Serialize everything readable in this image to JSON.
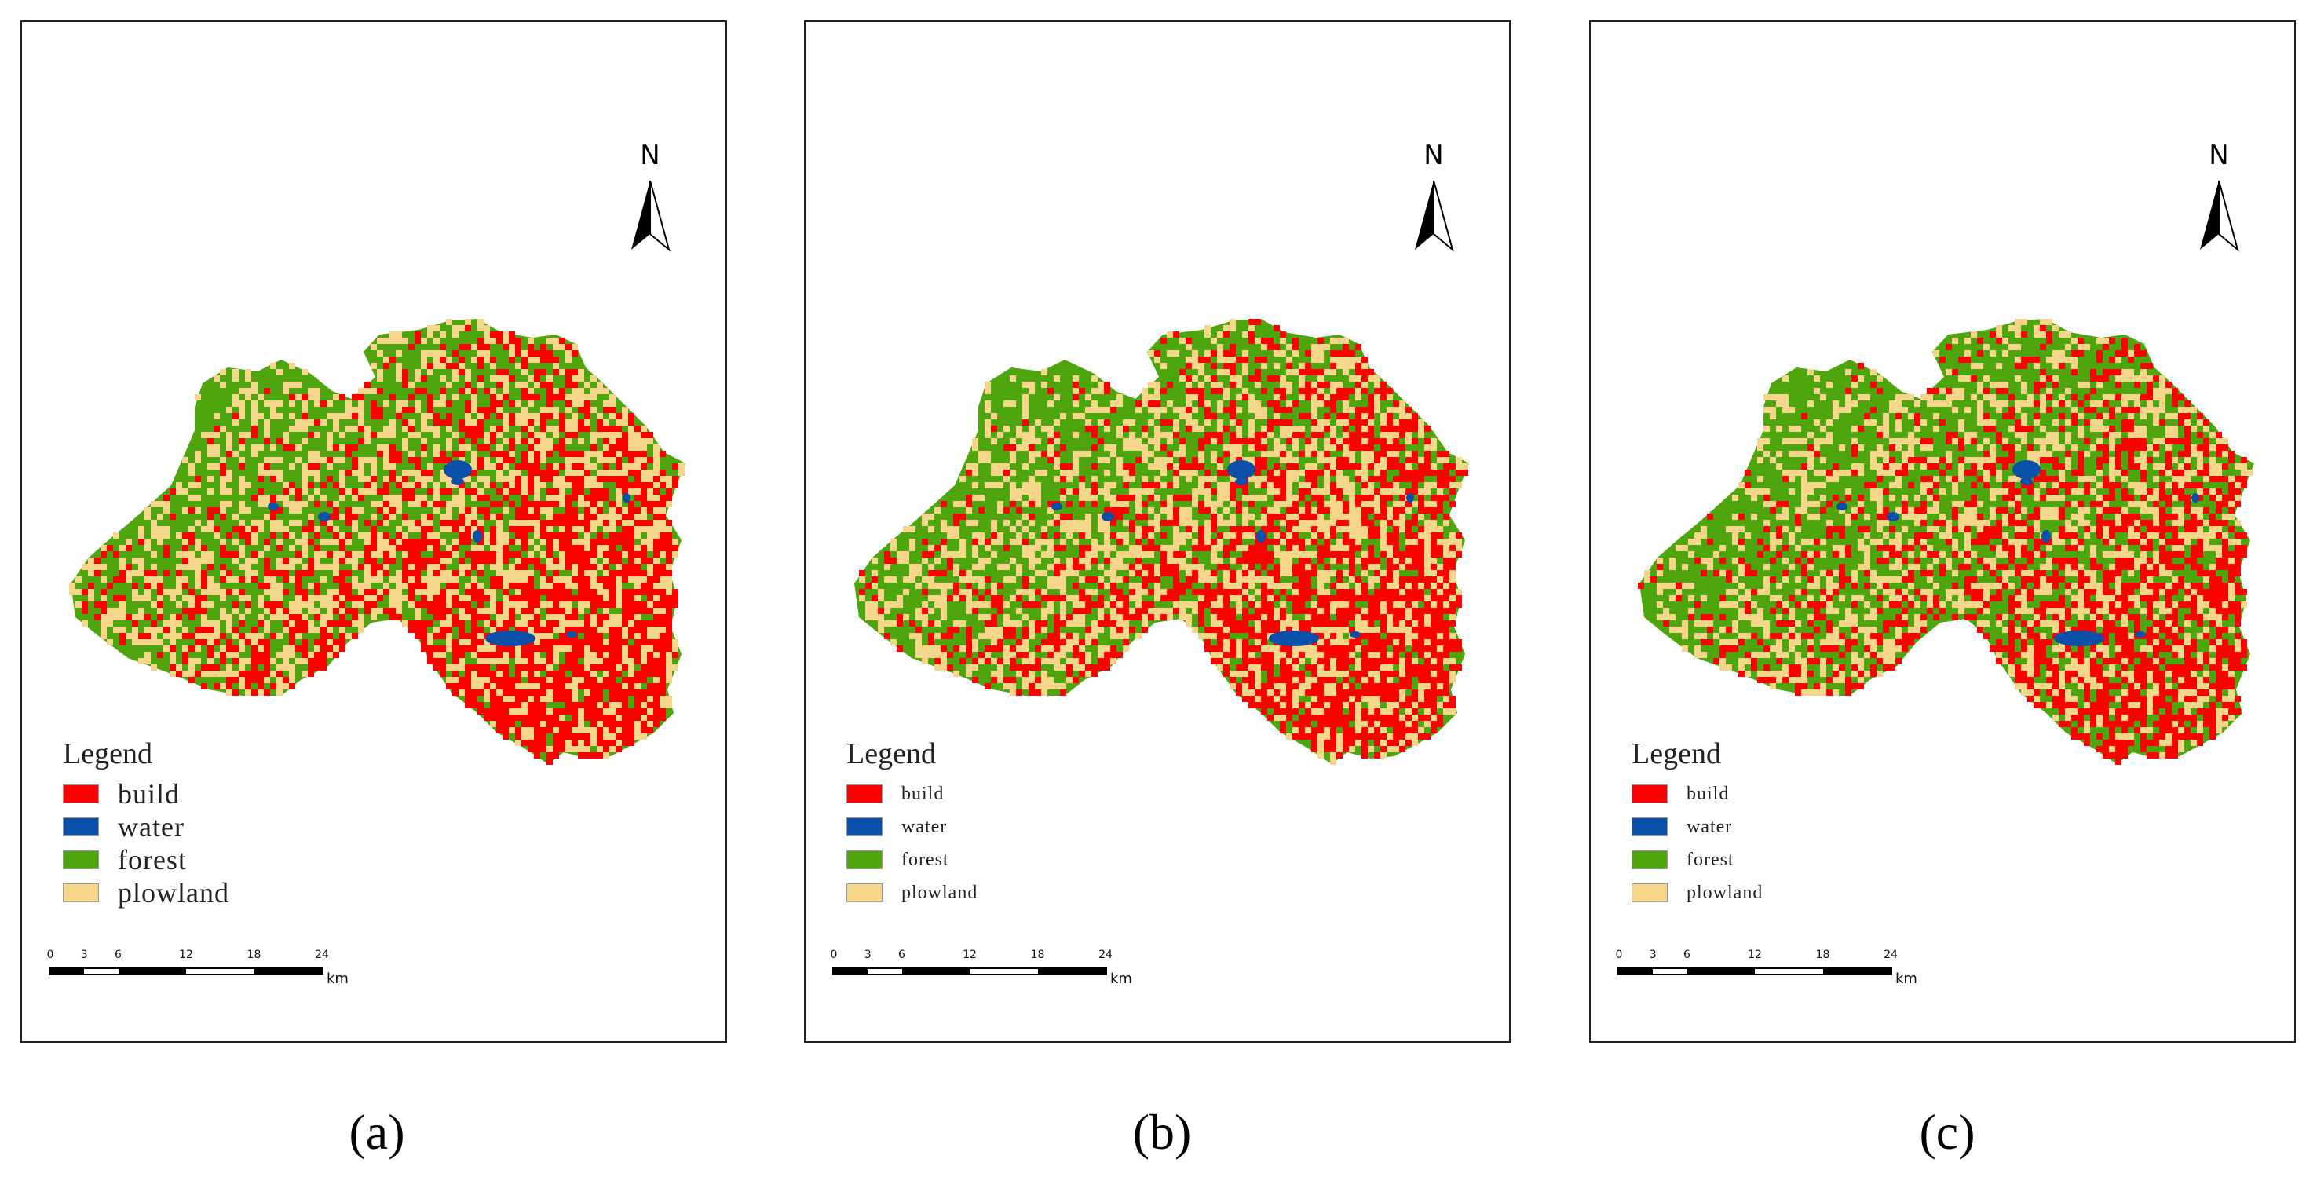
{
  "colors": {
    "build": "#ff0000",
    "water": "#0a4fa8",
    "forest": "#4ea50e",
    "plowland": "#f5d68a"
  },
  "panels": [
    {
      "id": "a",
      "caption": "(a)",
      "north": "N",
      "legend_title": "Legend",
      "legend": [
        {
          "label": "build",
          "color": "#ff0000"
        },
        {
          "label": "water",
          "color": "#0a4fa8"
        },
        {
          "label": "forest",
          "color": "#4ea50e"
        },
        {
          "label": "plowland",
          "color": "#f5d68a"
        }
      ],
      "class_share": {
        "build": 0.3,
        "water": 0.02,
        "forest": 0.43,
        "plowland": 0.25
      },
      "scale_ticks": [
        "0",
        "3",
        "6",
        "12",
        "18",
        "24"
      ],
      "scale_unit": "km"
    },
    {
      "id": "b",
      "caption": "(b)",
      "north": "N",
      "legend_title": "Legend",
      "legend": [
        {
          "label": "build",
          "color": "#ff0000"
        },
        {
          "label": "water",
          "color": "#0a4fa8"
        },
        {
          "label": "forest",
          "color": "#4ea50e"
        },
        {
          "label": "plowland",
          "color": "#f5d68a"
        }
      ],
      "class_share": {
        "build": 0.29,
        "water": 0.02,
        "forest": 0.44,
        "plowland": 0.25
      },
      "scale_ticks": [
        "0",
        "3",
        "6",
        "12",
        "18",
        "24"
      ],
      "scale_unit": "km"
    },
    {
      "id": "c",
      "caption": "(c)",
      "north": "N",
      "legend_title": "Legend",
      "legend": [
        {
          "label": "build",
          "color": "#ff0000"
        },
        {
          "label": "water",
          "color": "#0a4fa8"
        },
        {
          "label": "forest",
          "color": "#4ea50e"
        },
        {
          "label": "plowland",
          "color": "#f5d68a"
        }
      ],
      "class_share": {
        "build": 0.24,
        "water": 0.02,
        "forest": 0.52,
        "plowland": 0.22
      },
      "scale_ticks": [
        "0",
        "3",
        "6",
        "12",
        "18",
        "24"
      ],
      "scale_unit": "km"
    }
  ]
}
